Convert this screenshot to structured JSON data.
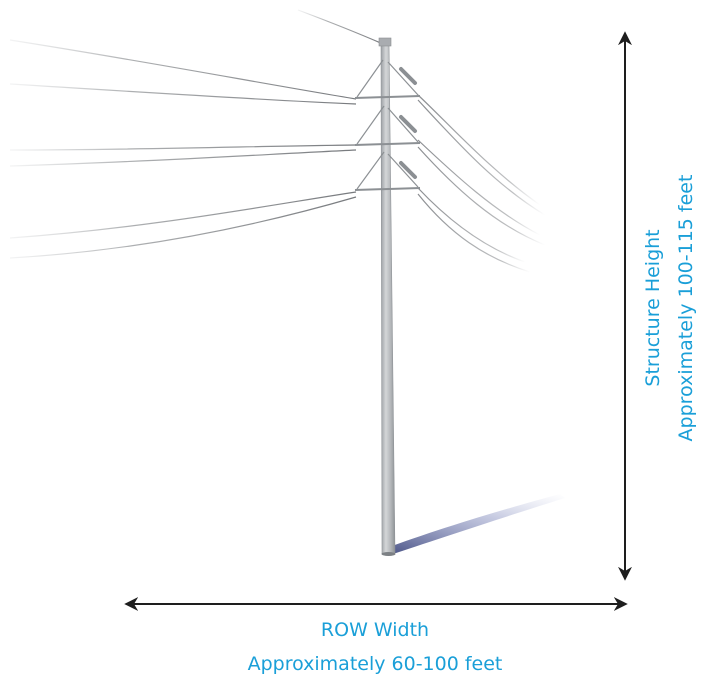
{
  "labels": {
    "height_title": "Structure Height",
    "height_value": "Approximately 100-115 feet",
    "width_title": "ROW Width",
    "width_value": "Approximately 60-100 feet"
  },
  "colors": {
    "accent_text": "#1a9fd8",
    "arrow": "#1e1e1e",
    "pole": "#b9bcbf",
    "wire": "#8a8d90"
  }
}
